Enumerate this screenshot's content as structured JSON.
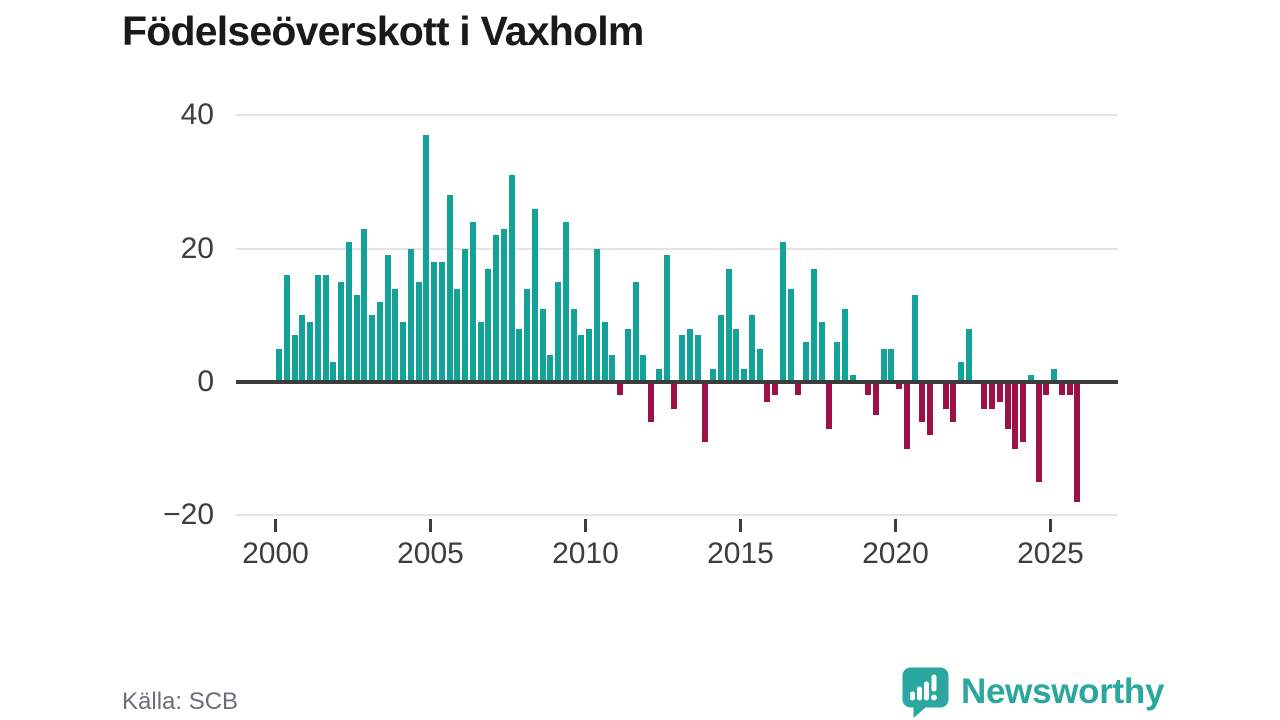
{
  "title": "Födelseöverskott i Vaxholm",
  "source": "Källa: SCB",
  "logo": {
    "text": "Newsworthy"
  },
  "colors": {
    "positive_bar": "#13a297",
    "negative_bar": "#9e1147",
    "gridline": "#e4e4e4",
    "zero_line": "#3c3c3c",
    "axis_text": "#3d3d3d",
    "source_text": "#6d6d76",
    "logo_teal": "#2aa79e",
    "title_text": "#1a1a1a",
    "background": "#ffffff"
  },
  "chart_data": {
    "type": "bar",
    "title": "Födelseöverskott i Vaxholm",
    "source": "Källa: SCB",
    "frequency": "quarterly",
    "start": "2000-Q1",
    "end": "2025-Q4",
    "values": [
      5,
      16,
      7,
      10,
      9,
      16,
      16,
      3,
      15,
      21,
      13,
      23,
      10,
      12,
      19,
      14,
      9,
      20,
      15,
      37,
      18,
      18,
      28,
      14,
      20,
      24,
      9,
      17,
      22,
      23,
      31,
      8,
      14,
      26,
      11,
      4,
      15,
      24,
      11,
      7,
      8,
      20,
      9,
      4,
      -2,
      8,
      15,
      4,
      -6,
      2,
      19,
      -4,
      7,
      8,
      7,
      -9,
      2,
      10,
      17,
      8,
      2,
      10,
      5,
      -3,
      -2,
      21,
      14,
      -2,
      6,
      17,
      9,
      -7,
      6,
      11,
      1,
      0,
      -2,
      -5,
      5,
      5,
      -1,
      -10,
      13,
      -6,
      -8,
      0,
      -4,
      -6,
      3,
      8,
      0,
      -4,
      -4,
      -3,
      -7,
      -10,
      -9,
      1,
      -15,
      -2,
      2,
      -2,
      -2,
      -18
    ],
    "xticks": [
      2000,
      2005,
      2010,
      2015,
      2020,
      2025
    ],
    "yticks": [
      40,
      20,
      0,
      -20
    ],
    "ylim": [
      -20,
      40
    ],
    "grid": true,
    "legend": false
  }
}
